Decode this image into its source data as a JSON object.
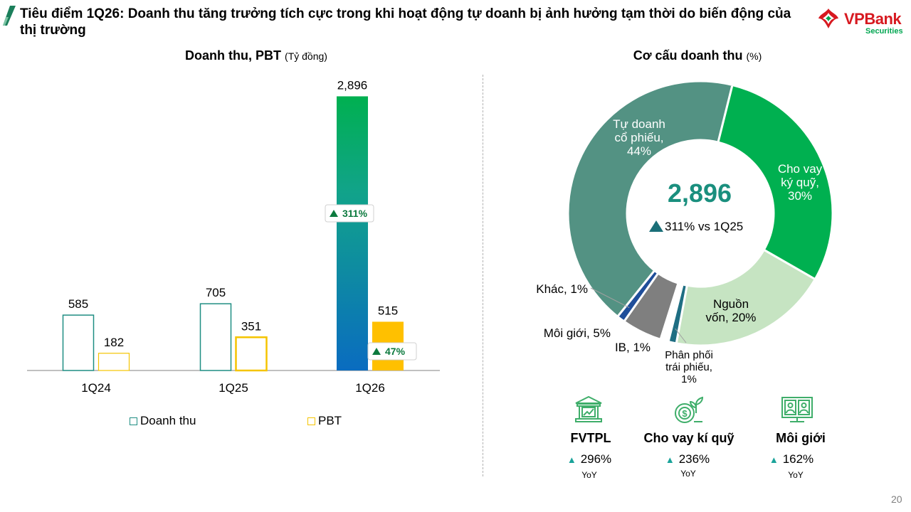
{
  "header": {
    "title": "Tiêu điểm 1Q26: Doanh thu tăng trưởng tích cực trong khi hoạt động tự doanh bị ảnh hưởng tạm thời do biến động của thị trường",
    "logo_text": "VPBank",
    "logo_sub": "Securities"
  },
  "left": {
    "subtitle": "Doanh thu, PBT",
    "unit": "(Tỷ đồng)"
  },
  "right": {
    "subtitle": "Cơ cấu doanh thu",
    "unit": "(%)"
  },
  "colors": {
    "revenue_outline": "#1f8e83",
    "pbt_outline": "#f5c400",
    "green": "#00b050",
    "teal_gradient_top": "#11a38a",
    "blue_gradient_bottom": "#0a6cc0",
    "amber": "#ffc000",
    "badge_green": "#0c7a3e",
    "seg_prop": "#539283",
    "seg_margin": "#00b050",
    "seg_capital": "#c6e4c2",
    "seg_bond": "#1f6e83",
    "seg_ib": "#ffffff",
    "seg_broker": "#7f7f7f",
    "seg_other": "#1f4e9a"
  },
  "chart_data": [
    {
      "type": "bar",
      "title": "Doanh thu, PBT",
      "categories": [
        "1Q24",
        "1Q25",
        "1Q26"
      ],
      "series": [
        {
          "name": "Doanh thu",
          "values": [
            585,
            705,
            2896
          ]
        },
        {
          "name": "PBT",
          "values": [
            182,
            351,
            515
          ]
        }
      ],
      "data_labels": {
        "Doanh thu": [
          "585",
          "705",
          "2,896"
        ],
        "PBT": [
          "182",
          "351",
          "515"
        ]
      },
      "badges": [
        {
          "series": "Doanh thu",
          "category": "1Q26",
          "text": "311%"
        },
        {
          "series": "PBT",
          "category": "1Q26",
          "text": "47%"
        }
      ],
      "ylim": [
        0,
        3200
      ],
      "legend": "bottom"
    },
    {
      "type": "pie",
      "title": "Cơ cấu doanh thu",
      "center_value": "2,896",
      "center_growth": "311% vs 1Q25",
      "slices": [
        {
          "label_lines": [
            "Cho vay",
            "ký quỹ,",
            "30%"
          ],
          "value": 30,
          "color_key": "seg_margin"
        },
        {
          "label_lines": [
            "Nguồn",
            "vốn, 20%"
          ],
          "value": 20,
          "color_key": "seg_capital"
        },
        {
          "label_lines": [
            "Phân phối",
            "trái phiếu,",
            "1%"
          ],
          "value": 1,
          "color_key": "seg_bond"
        },
        {
          "label_lines": [
            "IB, 1%"
          ],
          "value": 1,
          "color_key": "seg_ib"
        },
        {
          "label_lines": [
            "Môi giới, 5%"
          ],
          "value": 5,
          "color_key": "seg_broker"
        },
        {
          "label_lines": [
            "Khác, 1%"
          ],
          "value": 1,
          "color_key": "seg_other"
        },
        {
          "label_lines": [
            "Tự doanh",
            "cổ phiếu,",
            "44%"
          ],
          "value": 44,
          "color_key": "seg_prop"
        }
      ]
    }
  ],
  "kpis": [
    {
      "label": "FVTPL",
      "value": "296%",
      "yoy": "YoY",
      "icon": "bank-chart-icon"
    },
    {
      "label": "Cho vay kí quỹ",
      "value": "236%",
      "yoy": "YoY",
      "icon": "coin-plant-icon"
    },
    {
      "label": "Môi giới",
      "value": "162%",
      "yoy": "YoY",
      "icon": "monitor-users-icon"
    }
  ],
  "page_number": "20"
}
